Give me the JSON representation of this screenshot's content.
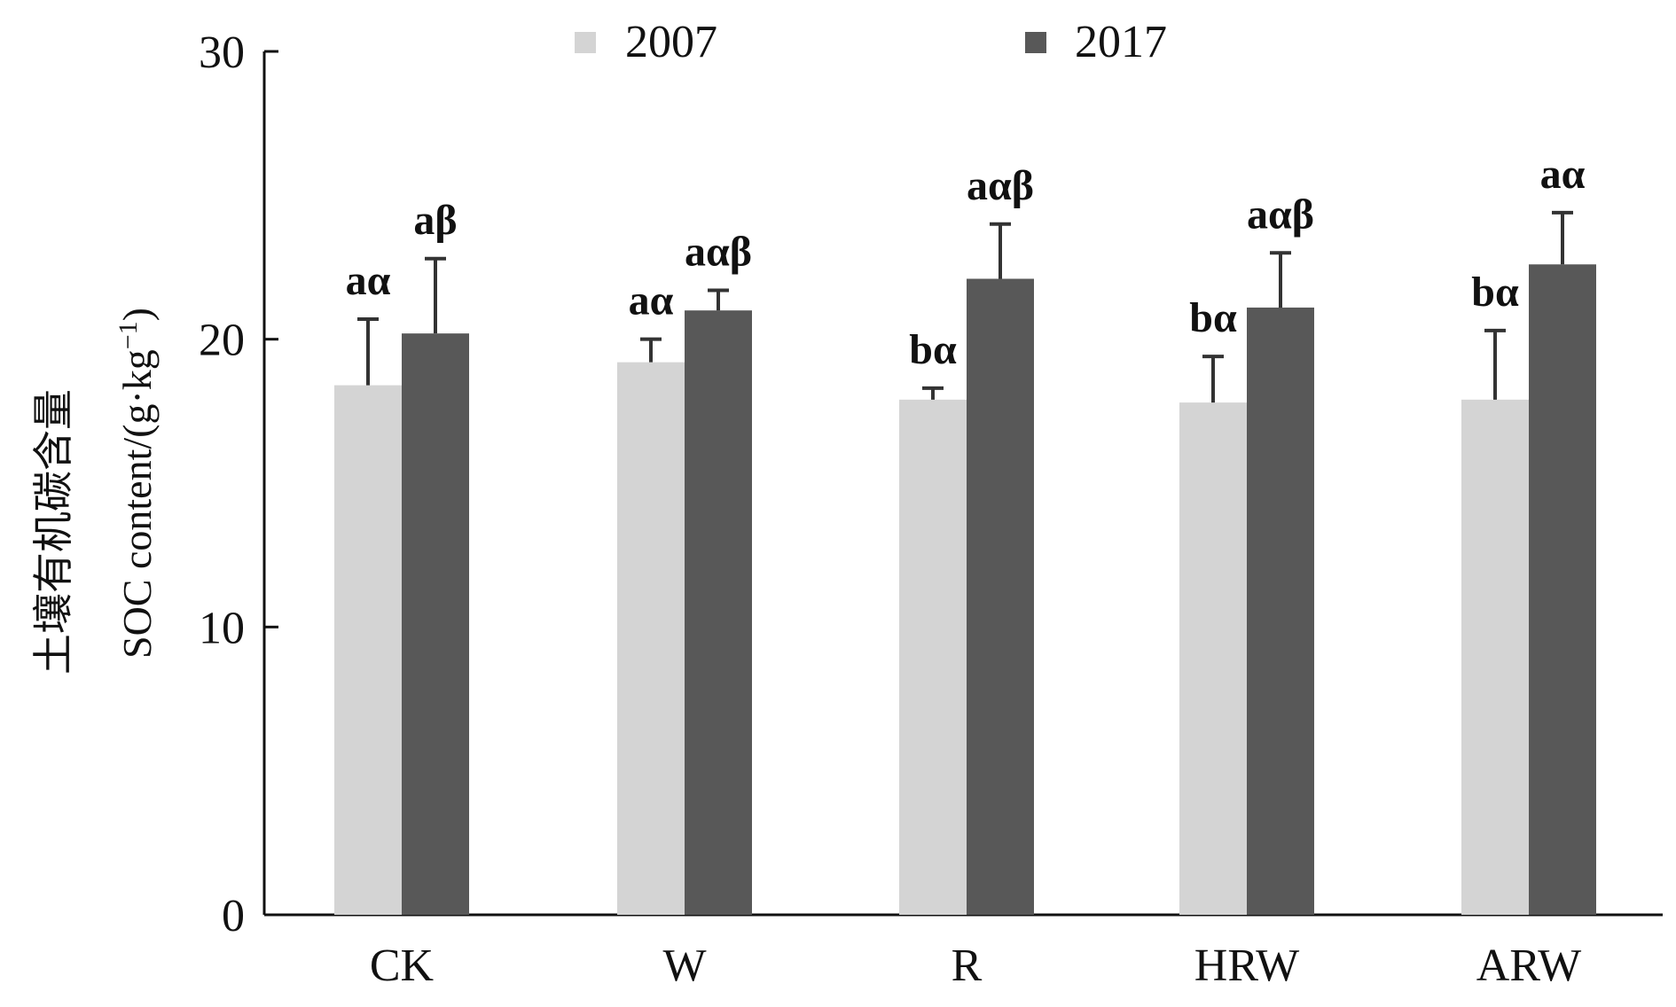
{
  "chart_data": {
    "type": "bar",
    "categories": [
      "CK",
      "W",
      "R",
      "HRW",
      "ARW"
    ],
    "series": [
      {
        "name": "2007",
        "color": "#d4d4d4",
        "values": [
          18.4,
          19.2,
          17.9,
          17.8,
          17.9
        ],
        "errors": [
          2.3,
          0.8,
          0.4,
          1.6,
          2.4
        ],
        "labels": [
          "aα",
          "aα",
          "bα",
          "bα",
          "bα"
        ]
      },
      {
        "name": "2017",
        "color": "#585858",
        "values": [
          20.2,
          21.0,
          22.1,
          21.1,
          22.6
        ],
        "errors": [
          2.6,
          0.7,
          1.9,
          1.9,
          1.8
        ],
        "labels": [
          "aβ",
          "aαβ",
          "aαβ",
          "aαβ",
          "aα"
        ]
      }
    ],
    "ylim": [
      0,
      30
    ],
    "yticks": [
      "0",
      "10",
      "20",
      "30"
    ],
    "ylabel": {
      "line1": "土壤有机碳含量",
      "line2_prefix": "SOC content/(g·kg",
      "line2_sup": "−1",
      "line2_suffix": ")"
    },
    "legend_position": "top",
    "grid": false
  }
}
